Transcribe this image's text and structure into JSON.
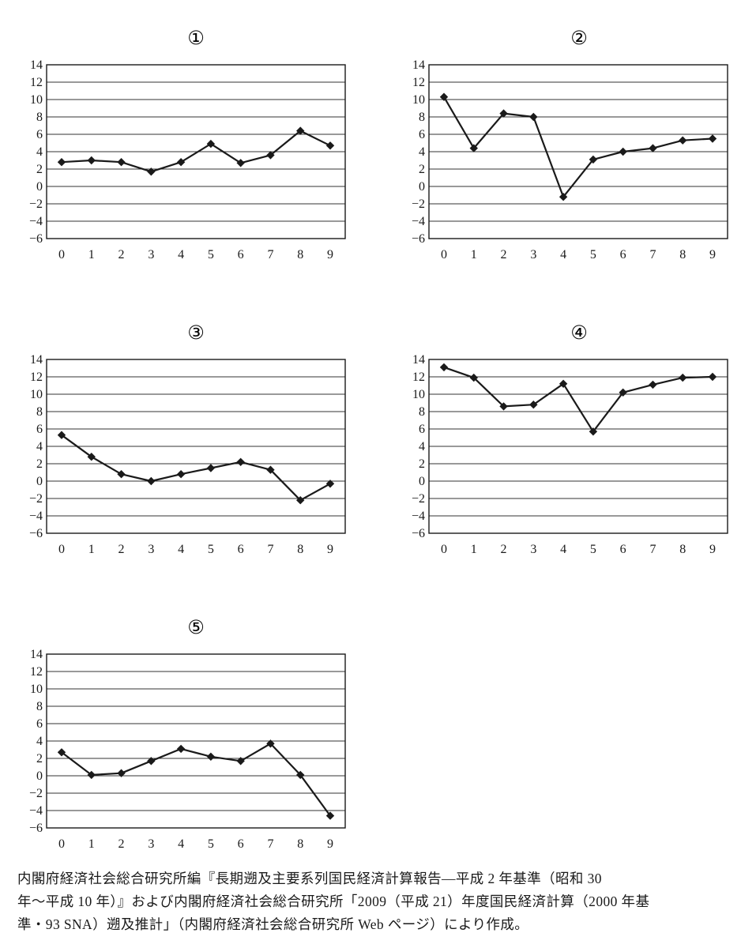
{
  "figure": {
    "caption_lines": [
      "内閣府経済社会総合研究所編『長期遡及主要系列国民経済計算報告—平成 2 年基準（昭和 30",
      "年～平成 10 年）』および内閣府経済社会総合研究所「2009（平成 21）年度国民経済計算（2000 年基",
      "準・93 SNA）遡及推計」（内閣府経済社会総合研究所 Web ページ）により作成。"
    ]
  },
  "chart_data": [
    {
      "type": "line",
      "label": "①",
      "x": [
        0,
        1,
        2,
        3,
        4,
        5,
        6,
        7,
        8,
        9
      ],
      "ylim": [
        -6,
        14
      ],
      "yticks": [
        "14",
        "12",
        "10",
        "8",
        "6",
        "4",
        "2",
        "0",
        "−2",
        "−4",
        "−6"
      ],
      "series": [
        {
          "values": [
            2.8,
            3.0,
            2.8,
            1.7,
            2.8,
            4.9,
            2.7,
            3.6,
            6.4,
            4.7
          ]
        }
      ],
      "grid": true,
      "line_color": "#1a1a1a"
    },
    {
      "type": "line",
      "label": "②",
      "x": [
        0,
        1,
        2,
        3,
        4,
        5,
        6,
        7,
        8,
        9
      ],
      "ylim": [
        -6,
        14
      ],
      "yticks": [
        "14",
        "12",
        "10",
        "8",
        "6",
        "4",
        "2",
        "0",
        "−2",
        "−4",
        "−6"
      ],
      "series": [
        {
          "values": [
            10.3,
            4.4,
            8.4,
            8.0,
            -1.2,
            3.1,
            4.0,
            4.4,
            5.3,
            5.5
          ]
        }
      ],
      "grid": true,
      "line_color": "#1a1a1a"
    },
    {
      "type": "line",
      "label": "③",
      "x": [
        0,
        1,
        2,
        3,
        4,
        5,
        6,
        7,
        8,
        9
      ],
      "ylim": [
        -6,
        14
      ],
      "yticks": [
        "14",
        "12",
        "10",
        "8",
        "6",
        "4",
        "2",
        "0",
        "−2",
        "−4",
        "−6"
      ],
      "series": [
        {
          "values": [
            5.3,
            2.8,
            0.8,
            0.0,
            0.8,
            1.5,
            2.2,
            1.3,
            -2.2,
            -0.3
          ]
        }
      ],
      "grid": true,
      "line_color": "#1a1a1a"
    },
    {
      "type": "line",
      "label": "④",
      "x": [
        0,
        1,
        2,
        3,
        4,
        5,
        6,
        7,
        8,
        9
      ],
      "ylim": [
        -6,
        14
      ],
      "yticks": [
        "14",
        "12",
        "10",
        "8",
        "6",
        "4",
        "2",
        "0",
        "−2",
        "−4",
        "−6"
      ],
      "series": [
        {
          "values": [
            13.1,
            11.9,
            8.6,
            8.8,
            11.2,
            5.7,
            10.2,
            11.1,
            11.9,
            12.0
          ]
        }
      ],
      "grid": true,
      "line_color": "#1a1a1a"
    },
    {
      "type": "line",
      "label": "⑤",
      "x": [
        0,
        1,
        2,
        3,
        4,
        5,
        6,
        7,
        8,
        9
      ],
      "ylim": [
        -6,
        14
      ],
      "yticks": [
        "14",
        "12",
        "10",
        "8",
        "6",
        "4",
        "2",
        "0",
        "−2",
        "−4",
        "−6"
      ],
      "series": [
        {
          "values": [
            2.7,
            0.1,
            0.3,
            1.7,
            3.1,
            2.2,
            1.7,
            3.7,
            0.1,
            -4.6
          ]
        }
      ],
      "grid": true,
      "line_color": "#1a1a1a"
    }
  ]
}
